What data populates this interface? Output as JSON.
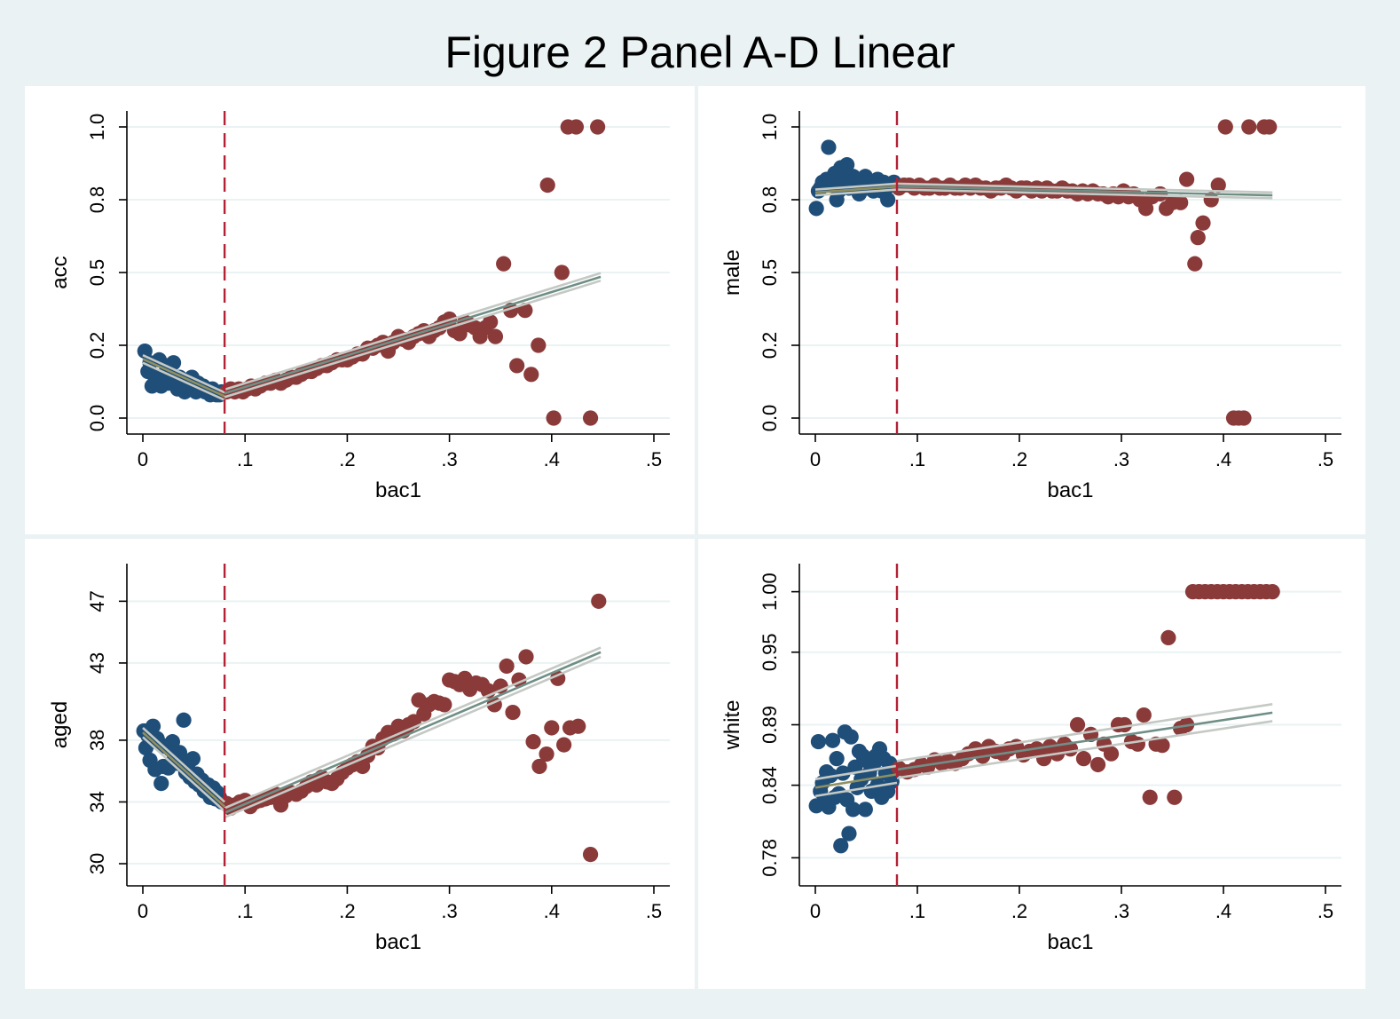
{
  "title": "Figure 2 Panel A-D Linear",
  "colors": {
    "left": "#1f4e79",
    "right": "#8b3a3a",
    "fit_left": "#8f8f60",
    "fit_right": "#6f8f86",
    "ci": "#c4c9c4",
    "cutoff": "#b22234",
    "background": "#eaf2f3"
  },
  "chart_data": [
    {
      "type": "scatter",
      "panel": "A",
      "xlabel": "bac1",
      "ylabel": "acc",
      "xlim": [
        0,
        0.5
      ],
      "ylim": [
        0,
        1
      ],
      "xticks": [
        0,
        0.1,
        0.2,
        0.3,
        0.4,
        0.5
      ],
      "xtick_labels": [
        "0",
        ".1",
        ".2",
        ".3",
        ".4",
        ".5"
      ],
      "yticks": [
        0,
        0.25,
        0.5,
        0.75,
        1
      ],
      "ytick_labels": [
        "0.0",
        "0.2",
        "0.5",
        "0.8",
        "1.0"
      ],
      "cutoff": 0.08,
      "series": [
        {
          "side": "left",
          "x": [
            0.002,
            0.005,
            0.007,
            0.009,
            0.012,
            0.014,
            0.016,
            0.018,
            0.021,
            0.023,
            0.025,
            0.027,
            0.03,
            0.032,
            0.034,
            0.036,
            0.039,
            0.041,
            0.043,
            0.045,
            0.048,
            0.05,
            0.052,
            0.054,
            0.057,
            0.059,
            0.061,
            0.063,
            0.066,
            0.068,
            0.07,
            0.072,
            0.075,
            0.077
          ],
          "y": [
            0.23,
            0.16,
            0.19,
            0.11,
            0.14,
            0.13,
            0.2,
            0.11,
            0.15,
            0.18,
            0.12,
            0.14,
            0.19,
            0.13,
            0.1,
            0.14,
            0.12,
            0.09,
            0.13,
            0.11,
            0.14,
            0.12,
            0.09,
            0.12,
            0.1,
            0.11,
            0.09,
            0.1,
            0.08,
            0.1,
            0.09,
            0.08,
            0.08,
            0.09
          ]
        },
        {
          "side": "right",
          "x": [
            0.082,
            0.086,
            0.09,
            0.094,
            0.098,
            0.102,
            0.106,
            0.11,
            0.115,
            0.12,
            0.125,
            0.13,
            0.135,
            0.14,
            0.145,
            0.15,
            0.155,
            0.16,
            0.165,
            0.17,
            0.175,
            0.18,
            0.185,
            0.19,
            0.195,
            0.2,
            0.205,
            0.21,
            0.215,
            0.22,
            0.225,
            0.23,
            0.235,
            0.24,
            0.245,
            0.25,
            0.255,
            0.26,
            0.265,
            0.27,
            0.275,
            0.28,
            0.285,
            0.29,
            0.295,
            0.3,
            0.305,
            0.31,
            0.315,
            0.32,
            0.325,
            0.33,
            0.335,
            0.34,
            0.345,
            0.353,
            0.36,
            0.366,
            0.374,
            0.38,
            0.387,
            0.396,
            0.402,
            0.41,
            0.416,
            0.424,
            0.438,
            0.445
          ],
          "y": [
            0.09,
            0.1,
            0.09,
            0.1,
            0.09,
            0.1,
            0.11,
            0.1,
            0.11,
            0.12,
            0.12,
            0.13,
            0.12,
            0.13,
            0.14,
            0.14,
            0.15,
            0.16,
            0.16,
            0.17,
            0.18,
            0.18,
            0.19,
            0.2,
            0.2,
            0.2,
            0.21,
            0.22,
            0.22,
            0.24,
            0.24,
            0.25,
            0.26,
            0.23,
            0.26,
            0.28,
            0.27,
            0.26,
            0.28,
            0.29,
            0.3,
            0.28,
            0.3,
            0.31,
            0.33,
            0.34,
            0.3,
            0.29,
            0.33,
            0.32,
            0.31,
            0.28,
            0.31,
            0.33,
            0.28,
            0.53,
            0.37,
            0.18,
            0.37,
            0.15,
            0.25,
            0.8,
            0.0,
            0.5,
            1.0,
            1.0,
            0.0,
            1.0
          ]
        }
      ],
      "fit": {
        "left": {
          "x0": 0,
          "y0": 0.203,
          "x1": 0.08,
          "y1": 0.075
        },
        "right": {
          "x0": 0.08,
          "y0": 0.085,
          "x1": 0.448,
          "y1": 0.485
        },
        "ci_halfwidth": 0.013
      }
    },
    {
      "type": "scatter",
      "panel": "B",
      "xlabel": "bac1",
      "ylabel": "male",
      "xlim": [
        0,
        0.5
      ],
      "ylim": [
        0,
        1
      ],
      "xticks": [
        0,
        0.1,
        0.2,
        0.3,
        0.4,
        0.5
      ],
      "xtick_labels": [
        "0",
        ".1",
        ".2",
        ".3",
        ".4",
        ".5"
      ],
      "yticks": [
        0,
        0.25,
        0.5,
        0.75,
        1
      ],
      "ytick_labels": [
        "0.0",
        "0.2",
        "0.5",
        "0.8",
        "1.0"
      ],
      "cutoff": 0.08,
      "series": [
        {
          "side": "left",
          "x": [
            0.001,
            0.003,
            0.005,
            0.007,
            0.009,
            0.011,
            0.013,
            0.015,
            0.017,
            0.019,
            0.021,
            0.023,
            0.025,
            0.027,
            0.029,
            0.031,
            0.033,
            0.035,
            0.037,
            0.039,
            0.041,
            0.043,
            0.045,
            0.047,
            0.049,
            0.051,
            0.053,
            0.055,
            0.057,
            0.059,
            0.061,
            0.063,
            0.065,
            0.067,
            0.069,
            0.071,
            0.073,
            0.075,
            0.077
          ],
          "y": [
            0.72,
            0.78,
            0.79,
            0.81,
            0.8,
            0.82,
            0.93,
            0.8,
            0.81,
            0.84,
            0.75,
            0.78,
            0.86,
            0.8,
            0.84,
            0.87,
            0.79,
            0.81,
            0.83,
            0.82,
            0.8,
            0.77,
            0.79,
            0.8,
            0.83,
            0.79,
            0.8,
            0.81,
            0.78,
            0.79,
            0.82,
            0.8,
            0.78,
            0.81,
            0.79,
            0.75,
            0.8,
            0.8,
            0.81
          ]
        },
        {
          "side": "right",
          "x": [
            0.082,
            0.087,
            0.092,
            0.097,
            0.102,
            0.107,
            0.112,
            0.117,
            0.122,
            0.127,
            0.132,
            0.137,
            0.142,
            0.147,
            0.152,
            0.157,
            0.162,
            0.167,
            0.172,
            0.177,
            0.182,
            0.187,
            0.192,
            0.197,
            0.202,
            0.207,
            0.212,
            0.217,
            0.222,
            0.227,
            0.232,
            0.237,
            0.242,
            0.247,
            0.252,
            0.257,
            0.262,
            0.267,
            0.272,
            0.277,
            0.282,
            0.287,
            0.292,
            0.297,
            0.302,
            0.307,
            0.312,
            0.318,
            0.324,
            0.33,
            0.338,
            0.344,
            0.35,
            0.358,
            0.364,
            0.372,
            0.375,
            0.38,
            0.388,
            0.395,
            0.402,
            0.41,
            0.415,
            0.42,
            0.425,
            0.44,
            0.445
          ],
          "y": [
            0.79,
            0.8,
            0.8,
            0.79,
            0.8,
            0.79,
            0.79,
            0.8,
            0.79,
            0.79,
            0.8,
            0.79,
            0.79,
            0.8,
            0.79,
            0.8,
            0.79,
            0.79,
            0.78,
            0.79,
            0.79,
            0.8,
            0.79,
            0.78,
            0.79,
            0.79,
            0.78,
            0.79,
            0.78,
            0.79,
            0.78,
            0.78,
            0.79,
            0.78,
            0.78,
            0.77,
            0.78,
            0.77,
            0.78,
            0.77,
            0.77,
            0.76,
            0.77,
            0.76,
            0.78,
            0.76,
            0.77,
            0.75,
            0.72,
            0.76,
            0.77,
            0.72,
            0.74,
            0.74,
            0.82,
            0.53,
            0.62,
            0.67,
            0.75,
            0.8,
            1.0,
            0.0,
            0.0,
            0.0,
            1.0,
            1.0,
            1.0
          ]
        }
      ],
      "fit": {
        "left": {
          "x0": 0,
          "y0": 0.775,
          "x1": 0.08,
          "y1": 0.795
        },
        "right": {
          "x0": 0.08,
          "y0": 0.795,
          "x1": 0.448,
          "y1": 0.765
        },
        "ci_halfwidth": 0.01
      }
    },
    {
      "type": "scatter",
      "panel": "C",
      "xlabel": "bac1",
      "ylabel": "aged",
      "xlim": [
        0,
        0.5
      ],
      "ylim": [
        29.6,
        48.4
      ],
      "xticks": [
        0,
        0.1,
        0.2,
        0.3,
        0.4,
        0.5
      ],
      "xtick_labels": [
        "0",
        ".1",
        ".2",
        ".3",
        ".4",
        ".5"
      ],
      "yticks": [
        30,
        34,
        38,
        43,
        47
      ],
      "ytick_labels": [
        "30",
        "34",
        "38",
        "43",
        "47"
      ],
      "cutoff": 0.08,
      "series": [
        {
          "side": "left",
          "x": [
            0.001,
            0.003,
            0.005,
            0.007,
            0.01,
            0.012,
            0.014,
            0.016,
            0.018,
            0.02,
            0.022,
            0.025,
            0.027,
            0.029,
            0.031,
            0.034,
            0.036,
            0.038,
            0.04,
            0.042,
            0.044,
            0.046,
            0.049,
            0.051,
            0.053,
            0.055,
            0.058,
            0.06,
            0.062,
            0.064,
            0.066,
            0.069,
            0.071,
            0.073,
            0.075,
            0.077
          ],
          "y": [
            38.6,
            37.5,
            38.3,
            36.7,
            38.9,
            36.1,
            38.1,
            37.8,
            35.2,
            36.3,
            37.6,
            36.2,
            37.4,
            37.9,
            36.9,
            36.5,
            37.2,
            36.6,
            39.3,
            35.9,
            36.4,
            35.6,
            36.8,
            35.3,
            35.8,
            35.1,
            35.4,
            34.7,
            35.0,
            35.1,
            34.3,
            34.9,
            34.2,
            34.6,
            34.3,
            34.0
          ]
        },
        {
          "side": "right",
          "x": [
            0.082,
            0.086,
            0.09,
            0.095,
            0.1,
            0.105,
            0.11,
            0.115,
            0.12,
            0.125,
            0.13,
            0.135,
            0.14,
            0.145,
            0.15,
            0.155,
            0.16,
            0.165,
            0.17,
            0.175,
            0.18,
            0.185,
            0.19,
            0.195,
            0.2,
            0.205,
            0.21,
            0.215,
            0.22,
            0.225,
            0.23,
            0.235,
            0.24,
            0.245,
            0.25,
            0.255,
            0.26,
            0.265,
            0.27,
            0.275,
            0.28,
            0.285,
            0.29,
            0.295,
            0.3,
            0.305,
            0.31,
            0.315,
            0.32,
            0.326,
            0.332,
            0.338,
            0.344,
            0.35,
            0.356,
            0.362,
            0.368,
            0.375,
            0.382,
            0.388,
            0.395,
            0.4,
            0.406,
            0.412,
            0.418,
            0.426,
            0.438,
            0.446
          ],
          "y": [
            33.9,
            33.6,
            33.8,
            34.0,
            34.1,
            33.7,
            34.0,
            34.1,
            34.2,
            34.3,
            34.5,
            33.8,
            34.4,
            34.6,
            34.5,
            34.7,
            35.0,
            35.3,
            35.1,
            35.6,
            35.3,
            35.2,
            35.5,
            35.9,
            36.2,
            36.4,
            36.6,
            36.3,
            37.0,
            37.6,
            37.5,
            38.1,
            38.5,
            38.4,
            38.9,
            38.6,
            39.0,
            39.2,
            40.6,
            39.7,
            40.3,
            40.5,
            40.4,
            40.3,
            41.9,
            41.8,
            41.6,
            42.0,
            41.3,
            41.7,
            41.6,
            41.2,
            40.3,
            41.5,
            42.8,
            39.8,
            41.9,
            43.4,
            37.9,
            36.3,
            37.1,
            38.8,
            42.0,
            37.7,
            38.8,
            38.9,
            30.6,
            47.0
          ]
        }
      ],
      "fit": {
        "left": {
          "x0": 0,
          "y0": 38.5,
          "x1": 0.08,
          "y1": 33.7
        },
        "right": {
          "x0": 0.08,
          "y0": 33.3,
          "x1": 0.448,
          "y1": 43.7
        },
        "ci_halfwidth": 0.3
      }
    },
    {
      "type": "scatter",
      "panel": "D",
      "xlabel": "bac1",
      "ylabel": "white",
      "xlim": [
        0,
        0.5
      ],
      "ylim": [
        0.77,
        1.01
      ],
      "xticks": [
        0,
        0.1,
        0.2,
        0.3,
        0.4,
        0.5
      ],
      "xtick_labels": [
        "0",
        ".1",
        ".2",
        ".3",
        ".4",
        ".5"
      ],
      "yticks": [
        0.78,
        0.84,
        0.89,
        0.95,
        1.0
      ],
      "ytick_labels": [
        "0.78",
        "0.84",
        "0.89",
        "0.95",
        "1.00"
      ],
      "cutoff": 0.08,
      "series": [
        {
          "side": "left",
          "x": [
            0.001,
            0.003,
            0.005,
            0.007,
            0.009,
            0.011,
            0.013,
            0.015,
            0.017,
            0.019,
            0.021,
            0.023,
            0.025,
            0.027,
            0.029,
            0.031,
            0.033,
            0.035,
            0.037,
            0.039,
            0.041,
            0.043,
            0.045,
            0.047,
            0.049,
            0.051,
            0.053,
            0.055,
            0.057,
            0.059,
            0.061,
            0.063,
            0.065,
            0.067,
            0.069,
            0.071,
            0.073,
            0.075,
            0.077
          ],
          "y": [
            0.823,
            0.876,
            0.835,
            0.842,
            0.828,
            0.851,
            0.822,
            0.848,
            0.877,
            0.83,
            0.862,
            0.833,
            0.79,
            0.85,
            0.884,
            0.828,
            0.8,
            0.88,
            0.82,
            0.855,
            0.838,
            0.868,
            0.845,
            0.864,
            0.82,
            0.86,
            0.85,
            0.835,
            0.857,
            0.864,
            0.84,
            0.87,
            0.83,
            0.862,
            0.85,
            0.835,
            0.858,
            0.843,
            0.852
          ]
        },
        {
          "side": "right",
          "x": [
            0.082,
            0.09,
            0.097,
            0.104,
            0.11,
            0.117,
            0.124,
            0.13,
            0.137,
            0.144,
            0.15,
            0.157,
            0.164,
            0.17,
            0.177,
            0.184,
            0.19,
            0.197,
            0.204,
            0.21,
            0.217,
            0.224,
            0.23,
            0.237,
            0.244,
            0.25,
            0.257,
            0.263,
            0.27,
            0.277,
            0.283,
            0.29,
            0.297,
            0.303,
            0.31,
            0.316,
            0.322,
            0.328,
            0.334,
            0.34,
            0.346,
            0.352,
            0.358,
            0.364,
            0.37,
            0.376,
            0.382,
            0.388,
            0.394,
            0.4,
            0.406,
            0.412,
            0.418,
            0.424,
            0.43,
            0.436,
            0.442,
            0.448
          ],
          "y": [
            0.854,
            0.851,
            0.853,
            0.857,
            0.855,
            0.861,
            0.858,
            0.86,
            0.858,
            0.862,
            0.866,
            0.87,
            0.864,
            0.872,
            0.868,
            0.866,
            0.87,
            0.872,
            0.865,
            0.868,
            0.87,
            0.862,
            0.872,
            0.866,
            0.874,
            0.87,
            0.89,
            0.862,
            0.882,
            0.857,
            0.874,
            0.866,
            0.89,
            0.89,
            0.876,
            0.874,
            0.898,
            0.83,
            0.874,
            0.873,
            0.962,
            0.83,
            0.887,
            0.89,
            1.0,
            1.0,
            1.0,
            1.0,
            1.0,
            1.0,
            1.0,
            1.0,
            1.0,
            1.0,
            1.0,
            1.0,
            1.0,
            1.0
          ]
        }
      ],
      "fit": {
        "left": {
          "x0": 0,
          "y0": 0.838,
          "x1": 0.08,
          "y1": 0.849
        },
        "right": {
          "x0": 0.08,
          "y0": 0.853,
          "x1": 0.448,
          "y1": 0.9
        },
        "ci_halfwidth": 0.007
      }
    }
  ]
}
